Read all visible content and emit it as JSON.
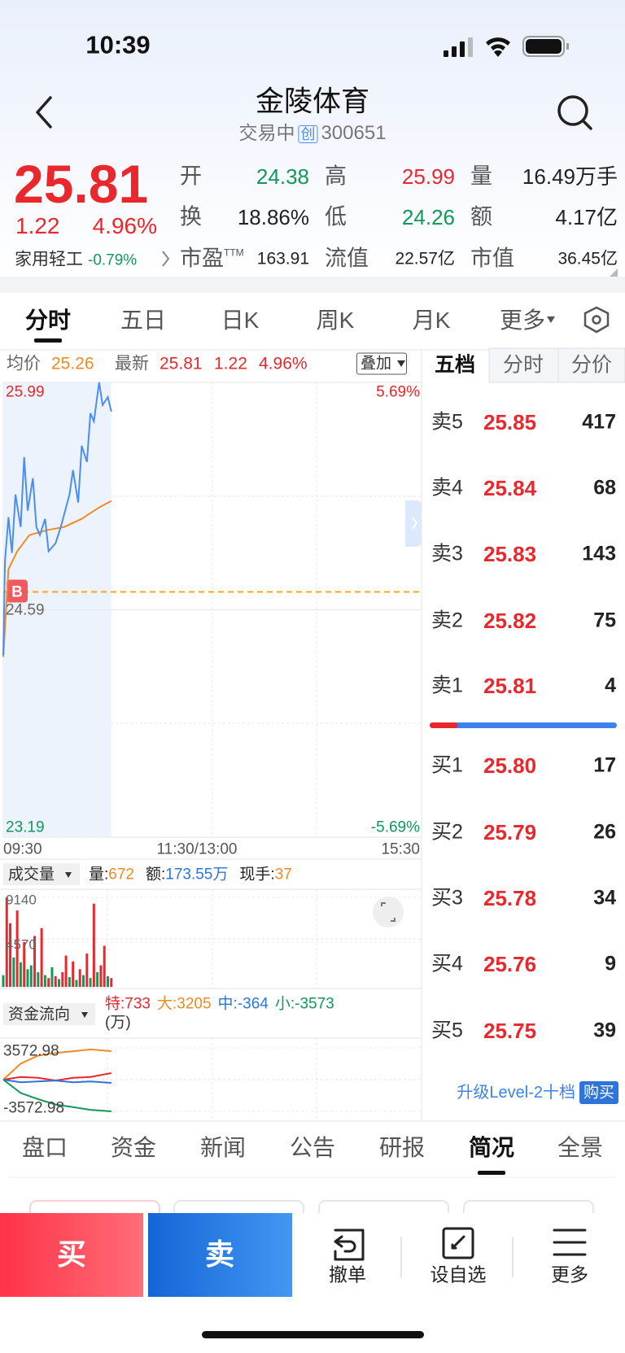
{
  "status_bar": {
    "time": "10:39"
  },
  "header": {
    "title": "金陵体育",
    "status": "交易中",
    "board": "创",
    "code": "300651"
  },
  "quote": {
    "price": "25.81",
    "change": "1.22",
    "change_pct": "4.96%",
    "industry": "家用轻工",
    "industry_change": "-0.79%",
    "stats": [
      {
        "label": "开",
        "value": "24.38",
        "color": "#12985a"
      },
      {
        "label": "高",
        "value": "25.99",
        "color": "#e8282d"
      },
      {
        "label": "量",
        "value": "16.49万手",
        "color": "#222"
      },
      {
        "label": "换",
        "value": "18.86%",
        "color": "#222"
      },
      {
        "label": "低",
        "value": "24.26",
        "color": "#12985a"
      },
      {
        "label": "额",
        "value": "4.17亿",
        "color": "#222"
      },
      {
        "label": "市盈",
        "sup": "TTM",
        "value": "163.91",
        "color": "#222"
      },
      {
        "label": "流值",
        "value": "22.57亿",
        "color": "#222"
      },
      {
        "label": "市值",
        "value": "36.45亿",
        "color": "#222"
      }
    ]
  },
  "tabs": [
    "分时",
    "五日",
    "日K",
    "周K",
    "月K",
    "更多"
  ],
  "selected_tab": 0,
  "intraday": {
    "avg_label": "均价",
    "avg": "25.26",
    "last_label": "最新",
    "last": "25.81",
    "change": "1.22",
    "change_pct": "4.96%",
    "overlay": "叠加",
    "ylim": [
      23.19,
      25.99
    ],
    "yticks": [
      {
        "value": 25.99,
        "label": "25.99"
      },
      {
        "value": 24.59,
        "label": "24.59"
      },
      {
        "value": 23.19,
        "label": "23.19"
      }
    ],
    "pct_labels": [
      "5.69%",
      "-5.69%"
    ],
    "xlim": [
      0,
      240
    ],
    "time_labels": [
      "09:30",
      "11:30/13:00",
      "15:30"
    ],
    "minutes": [
      0,
      1,
      3,
      5,
      7,
      10,
      12,
      14,
      17,
      19,
      21,
      24,
      26,
      30,
      33,
      38,
      40,
      43,
      45,
      48,
      50,
      52,
      55,
      57,
      60,
      62
    ],
    "price": [
      24.31,
      24.89,
      25.16,
      24.94,
      25.3,
      25.1,
      25.53,
      25.2,
      25.4,
      25.1,
      25.05,
      25.15,
      24.95,
      25.0,
      25.1,
      25.3,
      25.45,
      25.25,
      25.6,
      25.5,
      25.8,
      25.75,
      25.99,
      25.85,
      25.9,
      25.81
    ],
    "price_color": "#4a8ef5",
    "avg_minutes": [
      0,
      3,
      8,
      15,
      25,
      35,
      45,
      55,
      62
    ],
    "avg_price": [
      24.3,
      24.84,
      24.95,
      25.05,
      25.08,
      25.1,
      25.15,
      25.22,
      25.26
    ],
    "avg_color": "#f08a24",
    "marker": "B",
    "marker_price": 24.7
  },
  "volume": {
    "selector": "成交量",
    "stats": [
      {
        "label": "量:",
        "value": "672",
        "color": "#f08a24"
      },
      {
        "label": "额:",
        "value": "173.55万",
        "color": "#2f74d8"
      },
      {
        "label": "现手:",
        "value": "37",
        "color": "#f08a24"
      }
    ],
    "ylim": [
      0,
      9140
    ],
    "yticks": [
      {
        "value": 9140,
        "label": "9140"
      },
      {
        "value": 4570,
        "label": "4570"
      }
    ],
    "minutes": [
      0,
      2,
      4,
      6,
      8,
      10,
      12,
      14,
      16,
      18,
      20,
      22,
      24,
      26,
      28,
      30,
      32,
      34,
      36,
      38,
      40,
      42,
      44,
      46,
      48,
      50,
      52,
      54,
      56,
      58,
      60,
      62
    ],
    "values": [
      1200,
      9140,
      6500,
      3000,
      7800,
      2500,
      4570,
      1800,
      2200,
      5200,
      1500,
      6000,
      1200,
      900,
      2000,
      1100,
      800,
      1500,
      3200,
      1000,
      2600,
      700,
      1800,
      1200,
      3400,
      900,
      8500,
      1500,
      2200,
      4200,
      1100,
      900
    ],
    "colors": [
      "#12985a",
      "#e8282d",
      "#e8282d",
      "#12985a",
      "#e8282d",
      "#12985a",
      "#e8282d",
      "#12985a",
      "#12985a",
      "#e8282d",
      "#12985a",
      "#e8282d",
      "#12985a",
      "#e8282d",
      "#12985a",
      "#e8282d",
      "#12985a",
      "#e8282d",
      "#e8282d",
      "#12985a",
      "#e8282d",
      "#12985a",
      "#e8282d",
      "#12985a",
      "#e8282d",
      "#12985a",
      "#e8282d",
      "#12985a",
      "#e8282d",
      "#e8282d",
      "#12985a",
      "#e8282d"
    ]
  },
  "flow": {
    "selector": "资金流向",
    "items": [
      {
        "label": "特:",
        "value": "733",
        "color": "#e8282d"
      },
      {
        "label": "大:",
        "value": "3205",
        "color": "#f08a24"
      },
      {
        "label": "中:",
        "value": "-364",
        "color": "#2f74d8"
      },
      {
        "label": "小:",
        "value": "-3573",
        "color": "#12985a"
      }
    ],
    "unit": "(万)",
    "ylim": [
      -3572.98,
      3572.98
    ],
    "yticks": [
      {
        "value": 3572.98,
        "label": "3572.98"
      },
      {
        "value": -3572.98,
        "label": "-3572.98"
      }
    ],
    "minutes": [
      0,
      10,
      20,
      30,
      40,
      50,
      62
    ],
    "series": [
      {
        "color": "#e8282d",
        "values": [
          0,
          300,
          200,
          -100,
          200,
          300,
          733
        ]
      },
      {
        "color": "#f08a24",
        "values": [
          0,
          1800,
          2700,
          3000,
          3200,
          3400,
          3205
        ]
      },
      {
        "color": "#2f74d8",
        "values": [
          0,
          -300,
          -200,
          -100,
          -300,
          -200,
          -364
        ]
      },
      {
        "color": "#12985a",
        "values": [
          0,
          -1500,
          -2200,
          -2800,
          -3100,
          -3400,
          -3573
        ]
      }
    ]
  },
  "order_book": {
    "tabs": [
      "五档",
      "分时",
      "分价"
    ],
    "asks": [
      {
        "label": "卖5",
        "price": "25.85",
        "qty": "417"
      },
      {
        "label": "卖4",
        "price": "25.84",
        "qty": "68"
      },
      {
        "label": "卖3",
        "price": "25.83",
        "qty": "143"
      },
      {
        "label": "卖2",
        "price": "25.82",
        "qty": "75"
      },
      {
        "label": "卖1",
        "price": "25.81",
        "qty": "4"
      }
    ],
    "bids": [
      {
        "label": "买1",
        "price": "25.80",
        "qty": "17"
      },
      {
        "label": "买2",
        "price": "25.79",
        "qty": "26"
      },
      {
        "label": "买3",
        "price": "25.78",
        "qty": "34"
      },
      {
        "label": "买4",
        "price": "25.76",
        "qty": "9"
      },
      {
        "label": "买5",
        "price": "25.75",
        "qty": "39"
      }
    ],
    "buy_share": 15,
    "upgrade": "升级Level-2十档",
    "buy_button": "购买"
  },
  "bottom_tabs": [
    "盘口",
    "资金",
    "新闻",
    "公告",
    "研报",
    "简况",
    "全景"
  ],
  "selected_bottom_tab": 5,
  "actions": {
    "buy": "买",
    "sell": "卖",
    "items": [
      "撤单",
      "设自选",
      "更多"
    ]
  }
}
